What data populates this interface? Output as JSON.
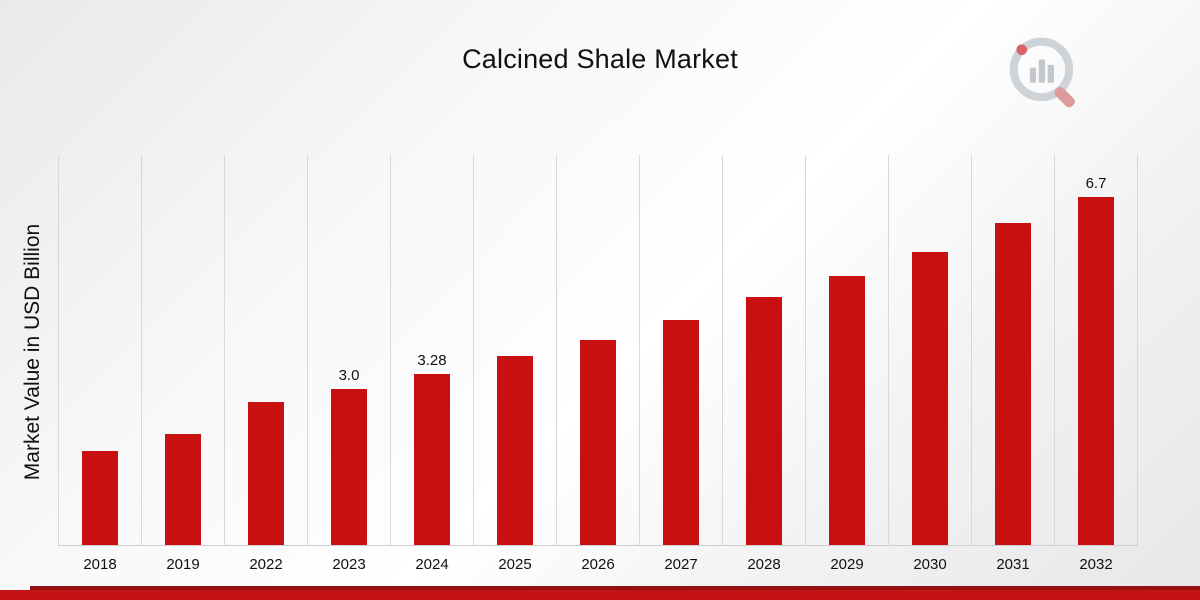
{
  "title": "Calcined Shale Market",
  "y_axis_label": "Market Value in USD Billion",
  "colors": {
    "bar": "#C81010",
    "stripe_dark": "#941012",
    "stripe_main": "#C51212",
    "gridline": "#D8D8DA",
    "logo_gray": "#C7CDD3",
    "logo_red": "#D34A4E"
  },
  "chart_data": {
    "type": "bar",
    "title": "Calcined Shale Market",
    "xlabel": "",
    "ylabel": "Market Value in USD Billion",
    "categories": [
      "2018",
      "2019",
      "2022",
      "2023",
      "2024",
      "2025",
      "2026",
      "2027",
      "2028",
      "2029",
      "2030",
      "2031",
      "2032"
    ],
    "values": [
      1.8,
      2.13,
      2.75,
      3.0,
      3.28,
      3.64,
      3.95,
      4.33,
      4.76,
      5.18,
      5.63,
      6.19,
      6.7
    ],
    "point_labels": [
      "",
      "",
      "",
      "3.0",
      "3.28",
      "",
      "",
      "",
      "",
      "",
      "",
      "",
      "6.7"
    ],
    "ylim": [
      0,
      7.5
    ],
    "grid": "vertical",
    "legend": "none"
  }
}
